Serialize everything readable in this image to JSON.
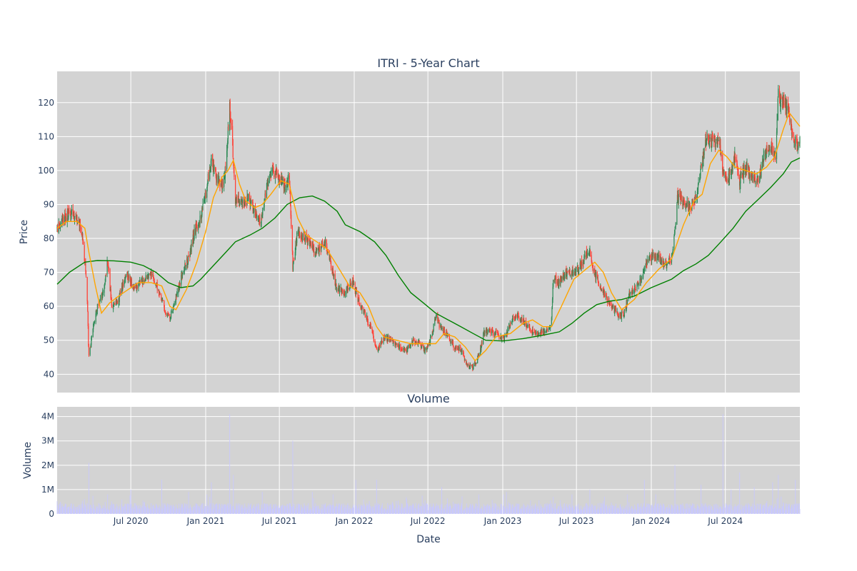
{
  "chart_data": [
    {
      "type": "candlestick",
      "title": "ITRI - 5-Year Chart",
      "xlabel": "",
      "ylabel": "Price",
      "ylim": [
        34.6,
        129.2
      ],
      "yticks": [
        40,
        50,
        60,
        70,
        80,
        90,
        100,
        110,
        120
      ],
      "xticks": [
        "Jul 2020",
        "Jan 2021",
        "Jul 2021",
        "Jan 2022",
        "Jul 2022",
        "Jan 2023",
        "Jul 2023",
        "Jan 2024",
        "Jul 2024"
      ],
      "xrange": [
        "2020-01-02",
        "2024-12-31"
      ],
      "grid": true,
      "colors": {
        "up": "#2e8b57",
        "down": "#ff4136",
        "plot_bg": "#d3d3d3",
        "ma_short": "#ffa500",
        "ma_long": "#008000"
      },
      "price_path": [
        [
          "2020-01-02",
          83
        ],
        [
          "2020-01-20",
          86
        ],
        [
          "2020-02-05",
          88
        ],
        [
          "2020-02-20",
          86
        ],
        [
          "2020-03-05",
          80
        ],
        [
          "2020-03-15",
          66
        ],
        [
          "2020-03-20",
          45
        ],
        [
          "2020-03-28",
          52
        ],
        [
          "2020-04-10",
          60
        ],
        [
          "2020-04-25",
          64
        ],
        [
          "2020-05-05",
          74
        ],
        [
          "2020-05-15",
          60
        ],
        [
          "2020-06-01",
          62
        ],
        [
          "2020-06-20",
          70
        ],
        [
          "2020-07-10",
          65
        ],
        [
          "2020-08-01",
          68
        ],
        [
          "2020-08-20",
          70
        ],
        [
          "2020-09-10",
          64
        ],
        [
          "2020-09-25",
          58
        ],
        [
          "2020-10-05",
          56
        ],
        [
          "2020-10-20",
          63
        ],
        [
          "2020-11-05",
          70
        ],
        [
          "2020-11-20",
          74
        ],
        [
          "2020-12-05",
          82
        ],
        [
          "2020-12-20",
          86
        ],
        [
          "2021-01-05",
          96
        ],
        [
          "2021-01-15",
          103
        ],
        [
          "2021-01-28",
          98
        ],
        [
          "2021-02-10",
          95
        ],
        [
          "2021-02-20",
          101
        ],
        [
          "2021-03-01",
          119
        ],
        [
          "2021-03-08",
          108
        ],
        [
          "2021-03-15",
          92
        ],
        [
          "2021-04-01",
          90
        ],
        [
          "2021-04-15",
          92
        ],
        [
          "2021-05-01",
          88
        ],
        [
          "2021-05-15",
          84
        ],
        [
          "2021-06-01",
          96
        ],
        [
          "2021-06-15",
          100
        ],
        [
          "2021-07-01",
          98
        ],
        [
          "2021-07-15",
          95
        ],
        [
          "2021-07-25",
          98
        ],
        [
          "2021-08-03",
          72
        ],
        [
          "2021-08-15",
          82
        ],
        [
          "2021-09-01",
          80
        ],
        [
          "2021-09-15",
          78
        ],
        [
          "2021-10-01",
          76
        ],
        [
          "2021-10-20",
          79
        ],
        [
          "2021-11-05",
          72
        ],
        [
          "2021-11-20",
          65
        ],
        [
          "2021-12-10",
          64
        ],
        [
          "2021-12-28",
          68
        ],
        [
          "2022-01-10",
          62
        ],
        [
          "2022-01-25",
          58
        ],
        [
          "2022-02-10",
          54
        ],
        [
          "2022-02-25",
          47
        ],
        [
          "2022-03-15",
          51
        ],
        [
          "2022-04-01",
          50
        ],
        [
          "2022-04-20",
          48
        ],
        [
          "2022-05-10",
          47
        ],
        [
          "2022-05-25",
          50
        ],
        [
          "2022-06-10",
          49
        ],
        [
          "2022-06-25",
          47
        ],
        [
          "2022-07-10",
          51
        ],
        [
          "2022-07-20",
          57
        ],
        [
          "2022-08-05",
          53
        ],
        [
          "2022-08-20",
          51
        ],
        [
          "2022-09-05",
          48
        ],
        [
          "2022-09-20",
          47
        ],
        [
          "2022-10-05",
          43
        ],
        [
          "2022-10-20",
          42
        ],
        [
          "2022-11-05",
          46
        ],
        [
          "2022-11-15",
          52
        ],
        [
          "2022-12-01",
          53
        ],
        [
          "2022-12-15",
          52
        ],
        [
          "2023-01-03",
          50
        ],
        [
          "2023-01-20",
          55
        ],
        [
          "2023-02-05",
          57
        ],
        [
          "2023-02-20",
          56
        ],
        [
          "2023-03-10",
          53
        ],
        [
          "2023-03-25",
          52
        ],
        [
          "2023-04-15",
          53
        ],
        [
          "2023-04-30",
          54
        ],
        [
          "2023-05-05",
          68
        ],
        [
          "2023-05-20",
          67
        ],
        [
          "2023-06-05",
          70
        ],
        [
          "2023-06-20",
          70
        ],
        [
          "2023-07-05",
          71
        ],
        [
          "2023-07-20",
          74
        ],
        [
          "2023-08-02",
          77
        ],
        [
          "2023-08-10",
          71
        ],
        [
          "2023-08-25",
          67
        ],
        [
          "2023-09-10",
          63
        ],
        [
          "2023-09-25",
          60
        ],
        [
          "2023-10-10",
          58
        ],
        [
          "2023-10-25",
          57
        ],
        [
          "2023-11-05",
          63
        ],
        [
          "2023-11-20",
          65
        ],
        [
          "2023-12-05",
          67
        ],
        [
          "2023-12-20",
          73
        ],
        [
          "2024-01-05",
          75
        ],
        [
          "2024-01-20",
          74
        ],
        [
          "2024-02-05",
          72
        ],
        [
          "2024-02-20",
          74
        ],
        [
          "2024-02-28",
          83
        ],
        [
          "2024-03-05",
          92
        ],
        [
          "2024-03-20",
          91
        ],
        [
          "2024-04-05",
          89
        ],
        [
          "2024-04-20",
          92
        ],
        [
          "2024-05-02",
          101
        ],
        [
          "2024-05-15",
          109
        ],
        [
          "2024-06-01",
          108
        ],
        [
          "2024-06-15",
          109
        ],
        [
          "2024-06-25",
          100
        ],
        [
          "2024-07-10",
          98
        ],
        [
          "2024-07-25",
          104
        ],
        [
          "2024-08-05",
          97
        ],
        [
          "2024-08-20",
          101
        ],
        [
          "2024-09-05",
          98
        ],
        [
          "2024-09-20",
          97
        ],
        [
          "2024-10-05",
          104
        ],
        [
          "2024-10-20",
          107
        ],
        [
          "2024-11-01",
          104
        ],
        [
          "2024-11-08",
          122
        ],
        [
          "2024-11-20",
          120
        ],
        [
          "2024-12-05",
          116
        ],
        [
          "2024-12-15",
          109
        ],
        [
          "2024-12-31",
          108
        ]
      ],
      "ma_short": [
        [
          "2020-01-02",
          83
        ],
        [
          "2020-01-25",
          85
        ],
        [
          "2020-02-20",
          85
        ],
        [
          "2020-03-10",
          83
        ],
        [
          "2020-03-20",
          76
        ],
        [
          "2020-04-05",
          66
        ],
        [
          "2020-04-20",
          58
        ],
        [
          "2020-05-10",
          61
        ],
        [
          "2020-06-01",
          63
        ],
        [
          "2020-06-25",
          65
        ],
        [
          "2020-07-20",
          67
        ],
        [
          "2020-08-20",
          67
        ],
        [
          "2020-09-15",
          66
        ],
        [
          "2020-10-05",
          60
        ],
        [
          "2020-10-20",
          59
        ],
        [
          "2020-11-15",
          65
        ],
        [
          "2020-12-10",
          73
        ],
        [
          "2021-01-01",
          82
        ],
        [
          "2021-01-20",
          92
        ],
        [
          "2021-02-10",
          98
        ],
        [
          "2021-02-25",
          100
        ],
        [
          "2021-03-10",
          103
        ],
        [
          "2021-03-25",
          96
        ],
        [
          "2021-04-10",
          91
        ],
        [
          "2021-05-01",
          89
        ],
        [
          "2021-05-20",
          90
        ],
        [
          "2021-06-10",
          93
        ],
        [
          "2021-07-05",
          97
        ],
        [
          "2021-07-25",
          96
        ],
        [
          "2021-08-15",
          86
        ],
        [
          "2021-09-05",
          81
        ],
        [
          "2021-10-01",
          79
        ],
        [
          "2021-10-25",
          77
        ],
        [
          "2021-11-20",
          72
        ],
        [
          "2021-12-20",
          66
        ],
        [
          "2022-01-15",
          64
        ],
        [
          "2022-02-05",
          60
        ],
        [
          "2022-02-25",
          54
        ],
        [
          "2022-03-15",
          51
        ],
        [
          "2022-04-15",
          50
        ],
        [
          "2022-05-20",
          49
        ],
        [
          "2022-06-25",
          49
        ],
        [
          "2022-07-20",
          49
        ],
        [
          "2022-08-10",
          52
        ],
        [
          "2022-09-05",
          51
        ],
        [
          "2022-10-01",
          48
        ],
        [
          "2022-10-25",
          44
        ],
        [
          "2022-11-20",
          47
        ],
        [
          "2022-12-15",
          51
        ],
        [
          "2023-01-20",
          52
        ],
        [
          "2023-02-20",
          55
        ],
        [
          "2023-03-15",
          56
        ],
        [
          "2023-04-10",
          54
        ],
        [
          "2023-05-01",
          54
        ],
        [
          "2023-05-25",
          60
        ],
        [
          "2023-06-25",
          68
        ],
        [
          "2023-07-25",
          71
        ],
        [
          "2023-08-15",
          73
        ],
        [
          "2023-09-05",
          70
        ],
        [
          "2023-09-25",
          64
        ],
        [
          "2023-10-20",
          59
        ],
        [
          "2023-11-20",
          62
        ],
        [
          "2023-12-20",
          67
        ],
        [
          "2024-01-20",
          71
        ],
        [
          "2024-02-20",
          74
        ],
        [
          "2024-03-20",
          84
        ],
        [
          "2024-04-15",
          91
        ],
        [
          "2024-05-05",
          93
        ],
        [
          "2024-05-25",
          102
        ],
        [
          "2024-06-15",
          106
        ],
        [
          "2024-07-05",
          104
        ],
        [
          "2024-07-25",
          101
        ],
        [
          "2024-08-20",
          100
        ],
        [
          "2024-09-15",
          99
        ],
        [
          "2024-10-10",
          101
        ],
        [
          "2024-10-30",
          104
        ],
        [
          "2024-11-20",
          112
        ],
        [
          "2024-12-05",
          117
        ],
        [
          "2024-12-31",
          113
        ]
      ],
      "ma_long": [
        [
          "2020-01-02",
          66.5
        ],
        [
          "2020-02-01",
          70
        ],
        [
          "2020-03-10",
          73
        ],
        [
          "2020-04-10",
          73.5
        ],
        [
          "2020-05-20",
          73.4
        ],
        [
          "2020-07-01",
          73
        ],
        [
          "2020-08-01",
          72
        ],
        [
          "2020-09-01",
          70
        ],
        [
          "2020-10-01",
          67
        ],
        [
          "2020-11-01",
          65.5
        ],
        [
          "2020-12-01",
          66
        ],
        [
          "2020-12-20",
          68
        ],
        [
          "2021-01-20",
          72
        ],
        [
          "2021-02-20",
          76
        ],
        [
          "2021-03-15",
          79
        ],
        [
          "2021-04-20",
          81
        ],
        [
          "2021-05-20",
          83
        ],
        [
          "2021-06-20",
          86
        ],
        [
          "2021-07-20",
          90
        ],
        [
          "2021-08-20",
          92
        ],
        [
          "2021-09-20",
          92.5
        ],
        [
          "2021-10-20",
          91
        ],
        [
          "2021-11-20",
          88
        ],
        [
          "2021-12-10",
          84
        ],
        [
          "2022-01-15",
          82
        ],
        [
          "2022-02-20",
          79
        ],
        [
          "2022-03-20",
          75
        ],
        [
          "2022-04-20",
          69
        ],
        [
          "2022-05-20",
          64
        ],
        [
          "2022-06-20",
          61
        ],
        [
          "2022-07-20",
          58
        ],
        [
          "2022-08-20",
          56
        ],
        [
          "2022-09-20",
          54
        ],
        [
          "2022-10-20",
          52
        ],
        [
          "2022-11-20",
          50
        ],
        [
          "2023-01-01",
          49.8
        ],
        [
          "2023-02-20",
          50.5
        ],
        [
          "2023-04-10",
          51.5
        ],
        [
          "2023-05-20",
          52.5
        ],
        [
          "2023-06-20",
          55
        ],
        [
          "2023-07-20",
          58
        ],
        [
          "2023-08-20",
          60.5
        ],
        [
          "2023-09-20",
          61.5
        ],
        [
          "2023-10-20",
          62
        ],
        [
          "2023-11-20",
          63
        ],
        [
          "2024-01-01",
          65.5
        ],
        [
          "2024-02-20",
          68
        ],
        [
          "2024-03-20",
          70.5
        ],
        [
          "2024-04-20",
          72.5
        ],
        [
          "2024-05-20",
          75
        ],
        [
          "2024-06-20",
          79
        ],
        [
          "2024-07-20",
          83
        ],
        [
          "2024-08-20",
          88
        ],
        [
          "2024-09-20",
          91.5
        ],
        [
          "2024-10-20",
          95
        ],
        [
          "2024-11-20",
          99
        ],
        [
          "2024-12-10",
          102.5
        ],
        [
          "2024-12-31",
          103.7
        ]
      ]
    },
    {
      "type": "bar",
      "title": "Volume",
      "xlabel": "Date",
      "ylabel": "Volume",
      "ylim": [
        0,
        4400000
      ],
      "yticks": [
        0,
        1000000,
        2000000,
        3000000,
        4000000
      ],
      "ytick_labels": [
        "0",
        "1M",
        "2M",
        "3M",
        "4M"
      ],
      "xticks": [
        "Jul 2020",
        "Jan 2021",
        "Jul 2021",
        "Jan 2022",
        "Jul 2022",
        "Jan 2023",
        "Jul 2023",
        "Jan 2024",
        "Jul 2024"
      ],
      "grid": true,
      "colors": {
        "bar": "#c8c8ff",
        "plot_bg": "#d3d3d3"
      },
      "baseline_volume": 330000,
      "spikes": [
        [
          "2020-03-20",
          2100000
        ],
        [
          "2020-05-05",
          800000
        ],
        [
          "2020-07-01",
          1000000
        ],
        [
          "2020-09-15",
          1400000
        ],
        [
          "2020-11-20",
          900000
        ],
        [
          "2021-01-15",
          1300000
        ],
        [
          "2021-03-01",
          4100000
        ],
        [
          "2021-03-10",
          1600000
        ],
        [
          "2021-05-20",
          900000
        ],
        [
          "2021-08-03",
          3000000
        ],
        [
          "2021-09-20",
          900000
        ],
        [
          "2021-11-10",
          800000
        ],
        [
          "2022-01-05",
          1400000
        ],
        [
          "2022-02-25",
          1400000
        ],
        [
          "2022-05-10",
          600000
        ],
        [
          "2022-08-04",
          1100000
        ],
        [
          "2022-11-03",
          800000
        ],
        [
          "2023-01-10",
          900000
        ],
        [
          "2023-02-25",
          900000
        ],
        [
          "2023-05-05",
          700000
        ],
        [
          "2023-06-20",
          800000
        ],
        [
          "2023-08-03",
          1000000
        ],
        [
          "2023-11-03",
          800000
        ],
        [
          "2023-12-15",
          1400000
        ],
        [
          "2024-02-28",
          2000000
        ],
        [
          "2024-05-02",
          1200000
        ],
        [
          "2024-06-25",
          4100000
        ],
        [
          "2024-07-15",
          1000000
        ],
        [
          "2024-08-05",
          1700000
        ],
        [
          "2024-09-10",
          1100000
        ],
        [
          "2024-10-25",
          1300000
        ],
        [
          "2024-11-08",
          1600000
        ],
        [
          "2024-12-20",
          1400000
        ]
      ]
    }
  ]
}
